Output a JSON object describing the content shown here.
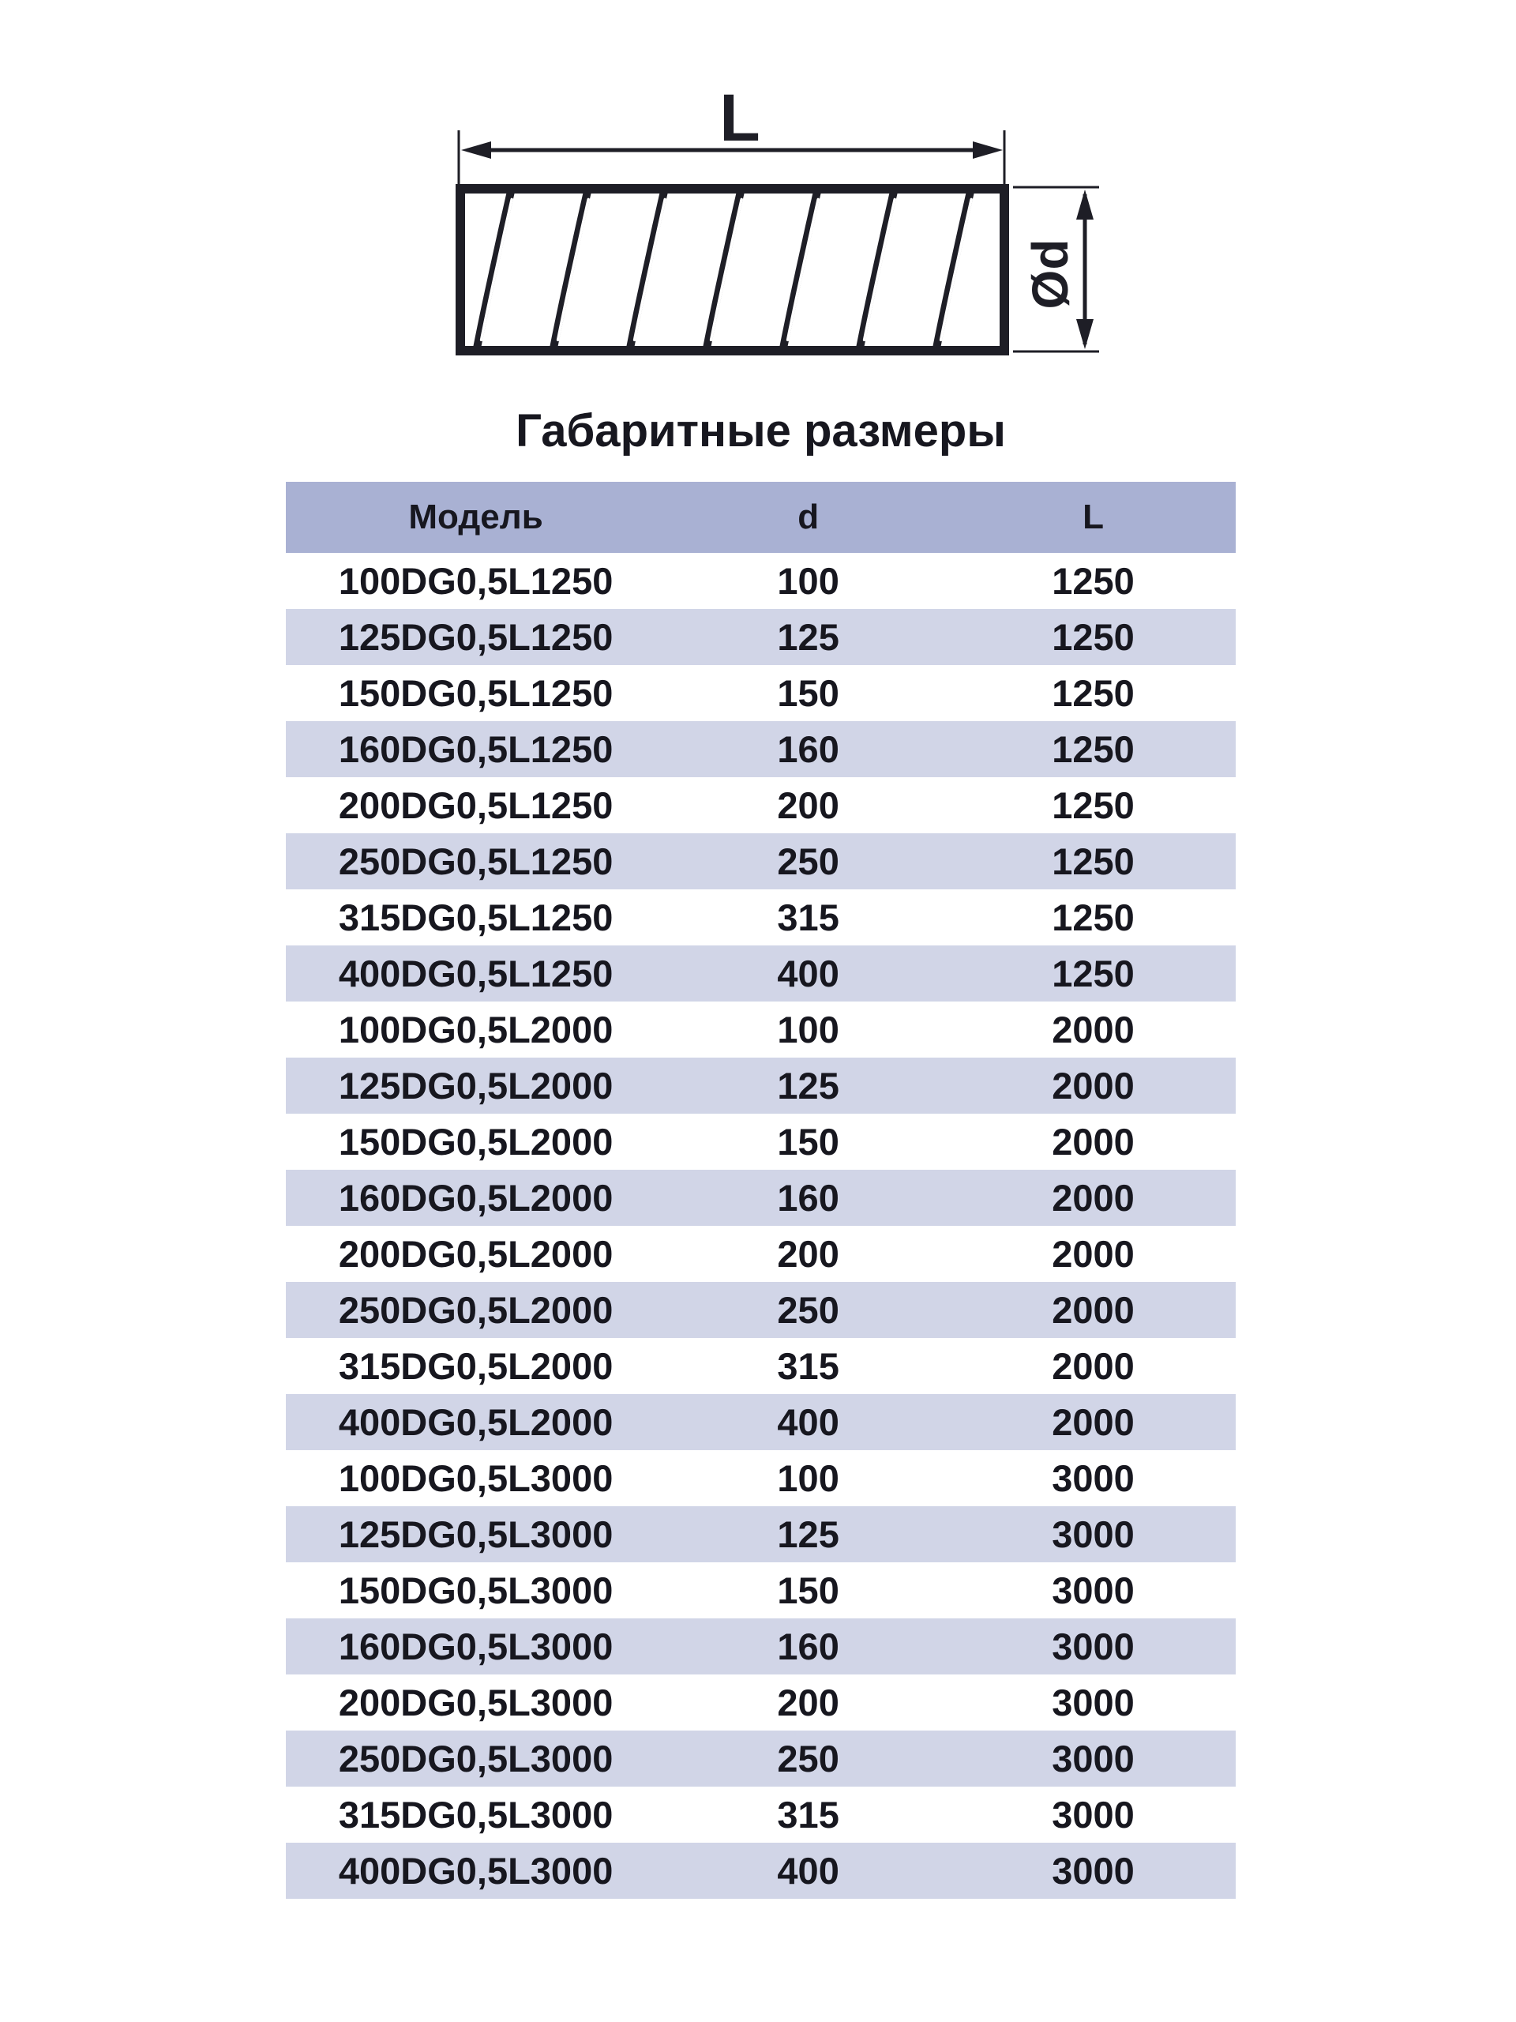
{
  "section_title": "Габаритные размеры",
  "diagram": {
    "length_label": "L",
    "diameter_label": "Ød"
  },
  "table": {
    "headers": [
      "Модель",
      "d",
      "L"
    ],
    "rows": [
      [
        "100DG0,5L1250",
        "100",
        "1250"
      ],
      [
        "125DG0,5L1250",
        "125",
        "1250"
      ],
      [
        "150DG0,5L1250",
        "150",
        "1250"
      ],
      [
        "160DG0,5L1250",
        "160",
        "1250"
      ],
      [
        "200DG0,5L1250",
        "200",
        "1250"
      ],
      [
        "250DG0,5L1250",
        "250",
        "1250"
      ],
      [
        "315DG0,5L1250",
        "315",
        "1250"
      ],
      [
        "400DG0,5L1250",
        "400",
        "1250"
      ],
      [
        "100DG0,5L2000",
        "100",
        "2000"
      ],
      [
        "125DG0,5L2000",
        "125",
        "2000"
      ],
      [
        "150DG0,5L2000",
        "150",
        "2000"
      ],
      [
        "160DG0,5L2000",
        "160",
        "2000"
      ],
      [
        "200DG0,5L2000",
        "200",
        "2000"
      ],
      [
        "250DG0,5L2000",
        "250",
        "2000"
      ],
      [
        "315DG0,5L2000",
        "315",
        "2000"
      ],
      [
        "400DG0,5L2000",
        "400",
        "2000"
      ],
      [
        "100DG0,5L3000",
        "100",
        "3000"
      ],
      [
        "125DG0,5L3000",
        "125",
        "3000"
      ],
      [
        "150DG0,5L3000",
        "150",
        "3000"
      ],
      [
        "160DG0,5L3000",
        "160",
        "3000"
      ],
      [
        "200DG0,5L3000",
        "200",
        "3000"
      ],
      [
        "250DG0,5L3000",
        "250",
        "3000"
      ],
      [
        "315DG0,5L3000",
        "315",
        "3000"
      ],
      [
        "400DG0,5L3000",
        "400",
        "3000"
      ]
    ]
  },
  "colors": {
    "header_bg": "#a9b1d3",
    "row_alt_bg": "#d1d5e7",
    "text": "#17171f",
    "line": "#1e1e26"
  }
}
